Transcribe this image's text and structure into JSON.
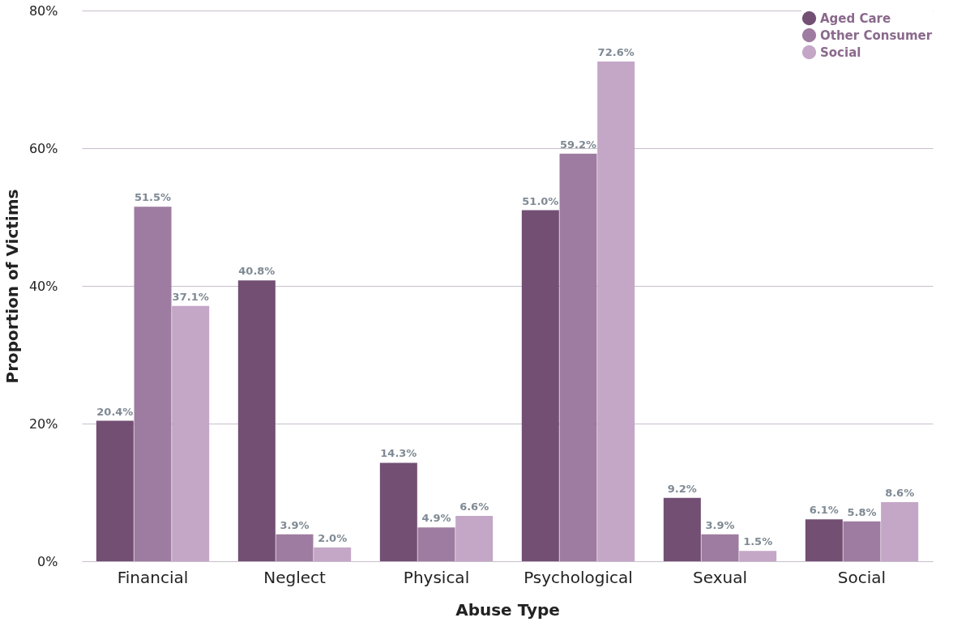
{
  "chart_data": {
    "type": "bar",
    "xlabel": "Abuse Type",
    "ylabel": "Proportion of Victims",
    "categories": [
      "Financial",
      "Neglect",
      "Physical",
      "Psychological",
      "Sexual",
      "Social"
    ],
    "series": [
      {
        "name": "Aged Care",
        "color": "#734f74",
        "values": [
          20.4,
          40.8,
          14.3,
          51.0,
          9.2,
          6.1
        ],
        "value_labels": [
          "20.4%",
          "40.8%",
          "14.3%",
          "51.0%",
          "9.2%",
          "6.1%"
        ]
      },
      {
        "name": "Other Consumer",
        "color": "#9e7ba0",
        "values": [
          51.5,
          3.9,
          4.9,
          59.2,
          3.9,
          5.8
        ],
        "value_labels": [
          "51.5%",
          "3.9%",
          "4.9%",
          "59.2%",
          "3.9%",
          "5.8%"
        ]
      },
      {
        "name": "Social",
        "color": "#c4a6c7",
        "values": [
          37.1,
          2.0,
          6.6,
          72.6,
          1.5,
          8.6
        ],
        "value_labels": [
          "37.1%",
          "2.0%",
          "6.6%",
          "72.6%",
          "1.5%",
          "8.6%"
        ]
      }
    ],
    "ylim": [
      0,
      80
    ],
    "yticks": [
      {
        "value": 0,
        "label": "0%"
      },
      {
        "value": 20,
        "label": "20%"
      },
      {
        "value": 40,
        "label": "40%"
      },
      {
        "value": 60,
        "label": "60%"
      },
      {
        "value": 80,
        "label": "80%"
      }
    ],
    "grid": "y",
    "legend": "top right"
  }
}
